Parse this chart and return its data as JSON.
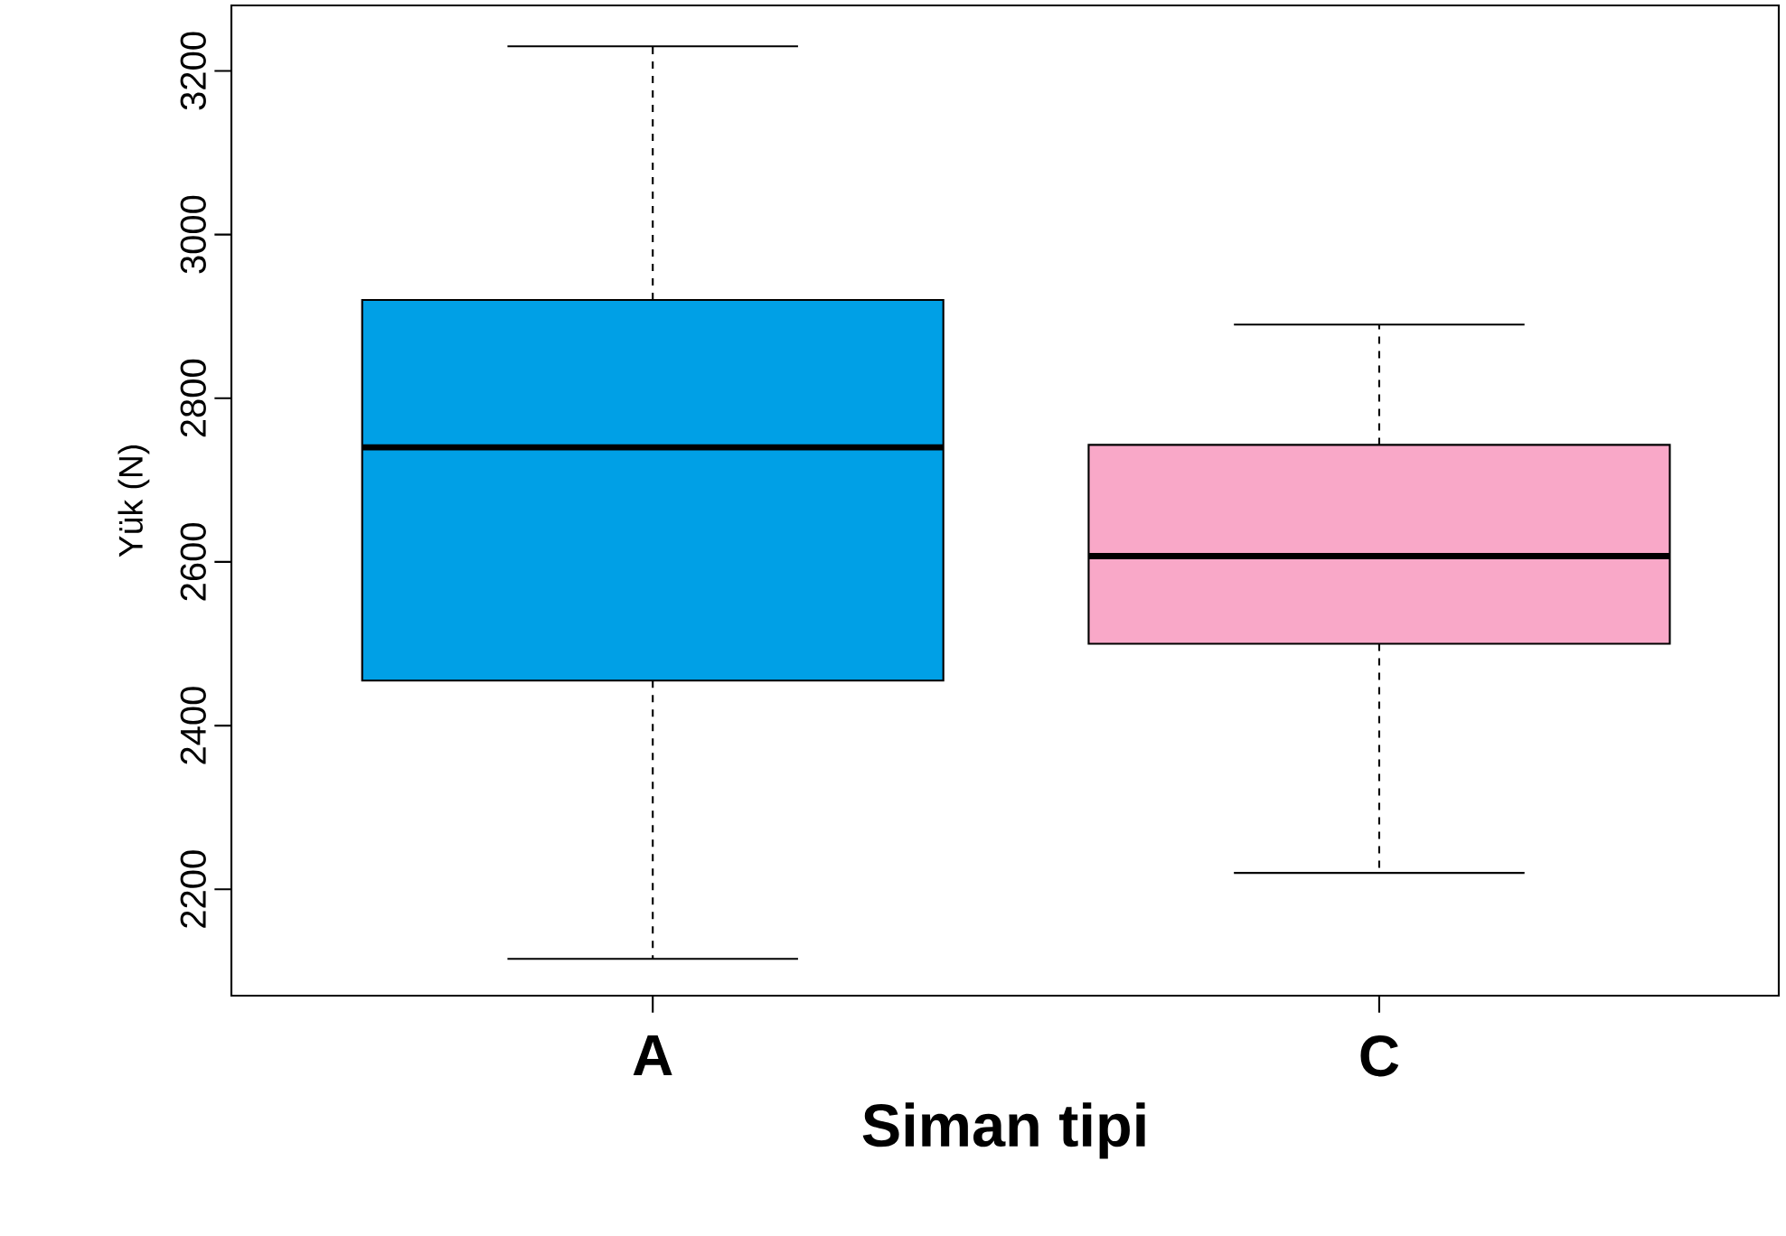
{
  "chart_data": {
    "type": "box",
    "xlabel": "Siman tipi",
    "ylabel": "Yük (N)",
    "categories": [
      "A",
      "C"
    ],
    "colors": [
      "#00a0e6",
      "#f9a8c8"
    ],
    "boxes": [
      {
        "low": 2115,
        "q1": 2455,
        "median": 2740,
        "q3": 2920,
        "high": 3230
      },
      {
        "low": 2220,
        "q1": 2500,
        "median": 2607,
        "q3": 2743,
        "high": 2890
      }
    ],
    "ylim": [
      2070,
      3280
    ],
    "yticks": [
      2200,
      2400,
      2600,
      2800,
      3000,
      3200
    ]
  }
}
